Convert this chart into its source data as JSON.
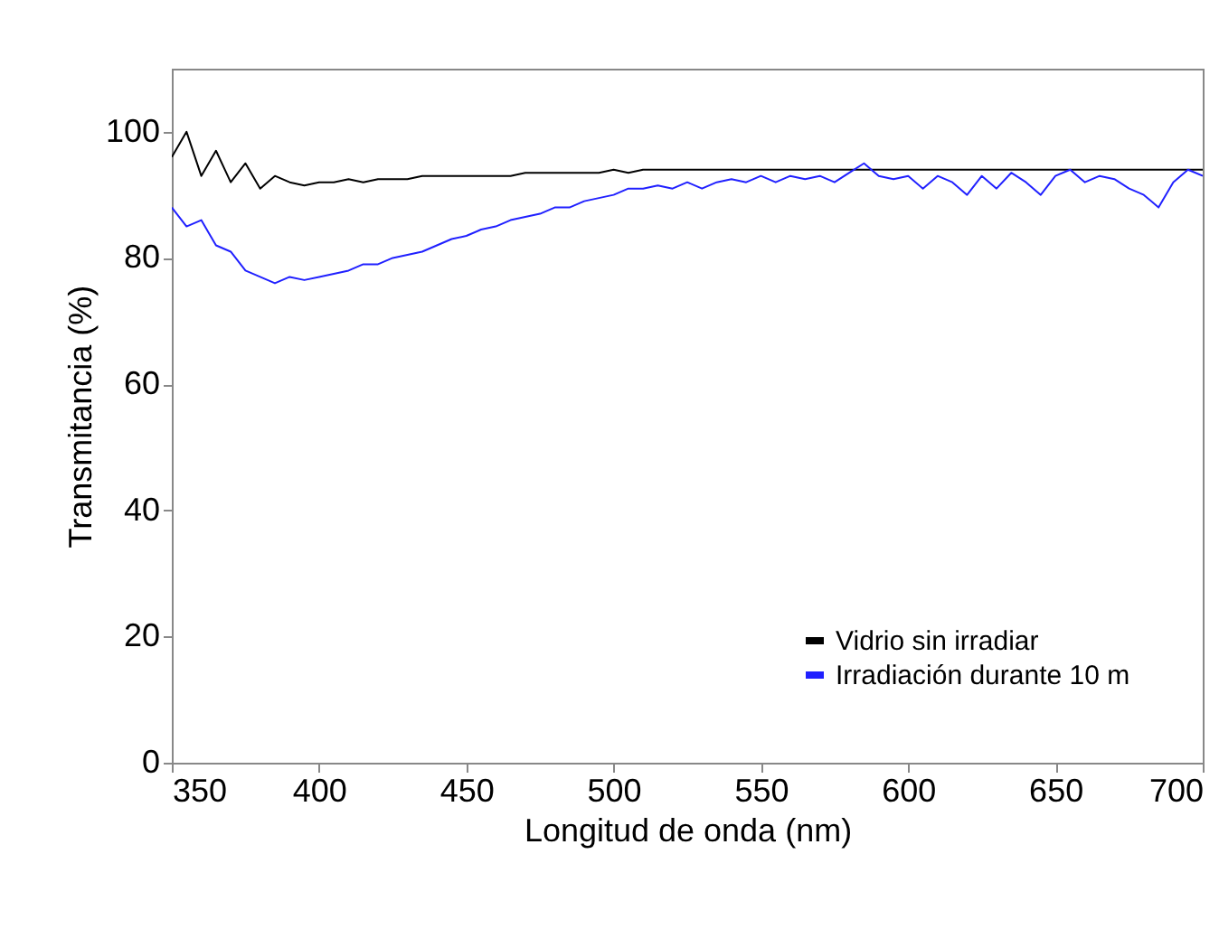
{
  "chart_data": {
    "type": "line",
    "xlabel": "Longitud de onda (nm)",
    "ylabel": "Transmitancia (%)",
    "x": [
      350,
      355,
      360,
      365,
      370,
      375,
      380,
      385,
      390,
      395,
      400,
      405,
      410,
      415,
      420,
      425,
      430,
      435,
      440,
      445,
      450,
      455,
      460,
      465,
      470,
      475,
      480,
      485,
      490,
      495,
      500,
      505,
      510,
      515,
      520,
      525,
      530,
      535,
      540,
      545,
      550,
      555,
      560,
      565,
      570,
      575,
      580,
      585,
      590,
      595,
      600,
      605,
      610,
      615,
      620,
      625,
      630,
      635,
      640,
      645,
      650,
      655,
      660,
      665,
      670,
      675,
      680,
      685,
      690,
      695,
      700
    ],
    "series": [
      {
        "name": "Vidrio sin irradiar",
        "color": "#000000",
        "values": [
          96,
          100,
          93,
          97,
          92,
          95,
          91,
          93,
          92,
          91.5,
          92,
          92,
          92.5,
          92,
          92.5,
          92.5,
          92.5,
          93,
          93,
          93,
          93,
          93,
          93,
          93,
          93.5,
          93.5,
          93.5,
          93.5,
          93.5,
          93.5,
          94,
          93.5,
          94,
          94,
          94,
          94,
          94,
          94,
          94,
          94,
          94,
          94,
          94,
          94,
          94,
          94,
          94,
          94,
          94,
          94,
          94,
          94,
          94,
          94,
          94,
          94,
          94,
          94,
          94,
          94,
          94,
          94,
          94,
          94,
          94,
          94,
          94,
          94,
          94,
          94,
          94
        ]
      },
      {
        "name": "Irradiación durante 10 m",
        "color": "#2020ff",
        "values": [
          88,
          85,
          86,
          82,
          81,
          78,
          77,
          76,
          77,
          76.5,
          77,
          77.5,
          78,
          79,
          79,
          80,
          80.5,
          81,
          82,
          83,
          83.5,
          84.5,
          85,
          86,
          86.5,
          87,
          88,
          88,
          89,
          89.5,
          90,
          91,
          91,
          91.5,
          91,
          92,
          91,
          92,
          92.5,
          92,
          93,
          92,
          93,
          92.5,
          93,
          92,
          93.5,
          95,
          93,
          92.5,
          93,
          91,
          93,
          92,
          90,
          93,
          91,
          93.5,
          92,
          90,
          93,
          94,
          92,
          93,
          92.5,
          91,
          90,
          88,
          92,
          94,
          93
        ]
      }
    ],
    "xlim": [
      350,
      700
    ],
    "xticks": [
      350,
      400,
      450,
      500,
      550,
      600,
      650,
      700
    ],
    "ylim": [
      0,
      110
    ],
    "yticks": [
      0,
      20,
      40,
      60,
      80,
      100
    ],
    "grid": false,
    "legend": "bottom right",
    "marker": "none",
    "line_style": "solid"
  }
}
